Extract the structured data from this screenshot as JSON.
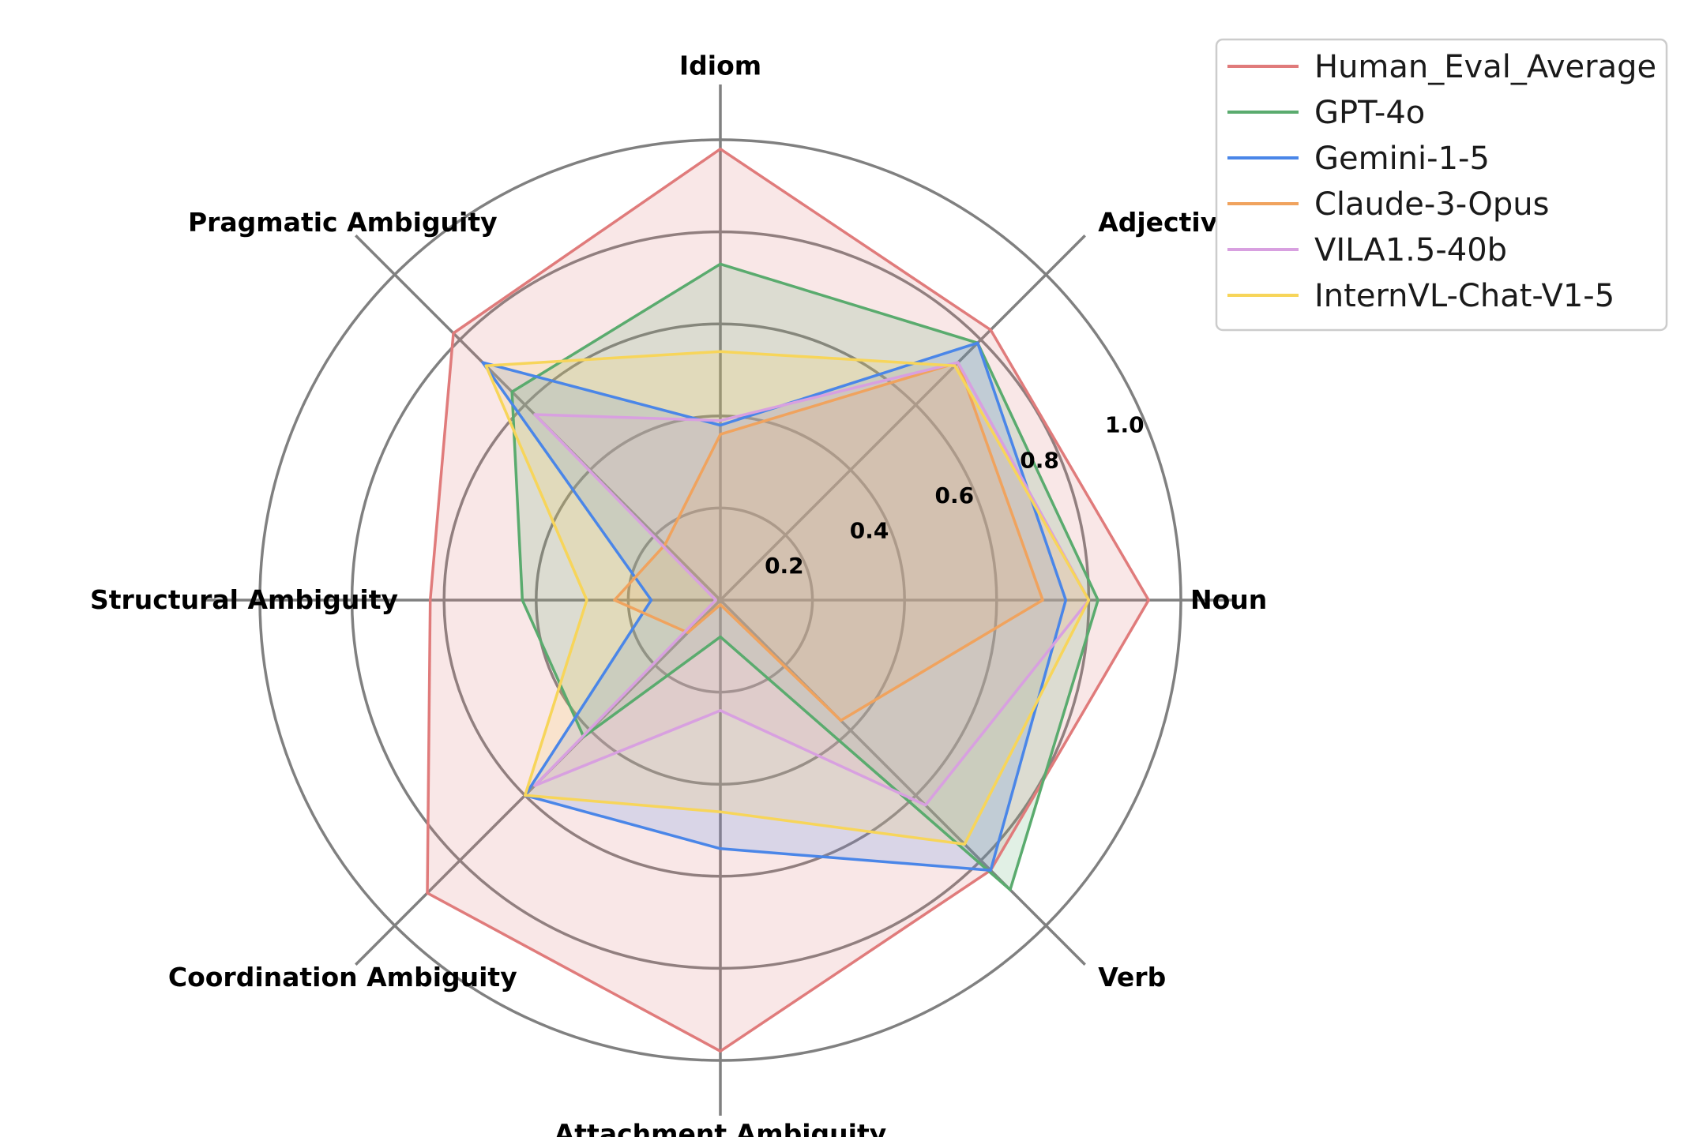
{
  "chart_data": {
    "type": "radar",
    "categories": [
      "Noun",
      "Adjective",
      "Idiom",
      "Pragmatic Ambiguity",
      "Structural Ambiguity",
      "Coordination Ambiguity",
      "Attachment Ambiguity",
      "Verb"
    ],
    "rlim": [
      0,
      1.0
    ],
    "rticks": [
      "0.2",
      "0.4",
      "0.6",
      "0.8",
      "1.0"
    ],
    "grid": true,
    "legend_position": "top-right",
    "series": [
      {
        "name": "Human_Eval_Average",
        "color": "#e07b7b",
        "values": [
          0.93,
          0.83,
          0.98,
          0.82,
          0.63,
          0.9,
          0.98,
          0.83
        ]
      },
      {
        "name": "GPT-4o",
        "color": "#5aab6e",
        "values": [
          0.82,
          0.79,
          0.73,
          0.64,
          0.43,
          0.42,
          0.08,
          0.89
        ]
      },
      {
        "name": "Gemini-1-5",
        "color": "#4a86e8",
        "values": [
          0.75,
          0.79,
          0.38,
          0.73,
          0.15,
          0.6,
          0.54,
          0.83
        ]
      },
      {
        "name": "Claude-3-Opus",
        "color": "#f0a35e",
        "values": [
          0.7,
          0.73,
          0.36,
          0.17,
          0.23,
          0.1,
          0.01,
          0.37
        ]
      },
      {
        "name": "VILA1.5-40b",
        "color": "#d8a0e0",
        "values": [
          0.8,
          0.73,
          0.39,
          0.57,
          0.01,
          0.57,
          0.24,
          0.63
        ]
      },
      {
        "name": "InternVL-Chat-V1-5",
        "color": "#f7d55a",
        "values": [
          0.8,
          0.72,
          0.54,
          0.72,
          0.29,
          0.6,
          0.46,
          0.75
        ]
      }
    ]
  }
}
